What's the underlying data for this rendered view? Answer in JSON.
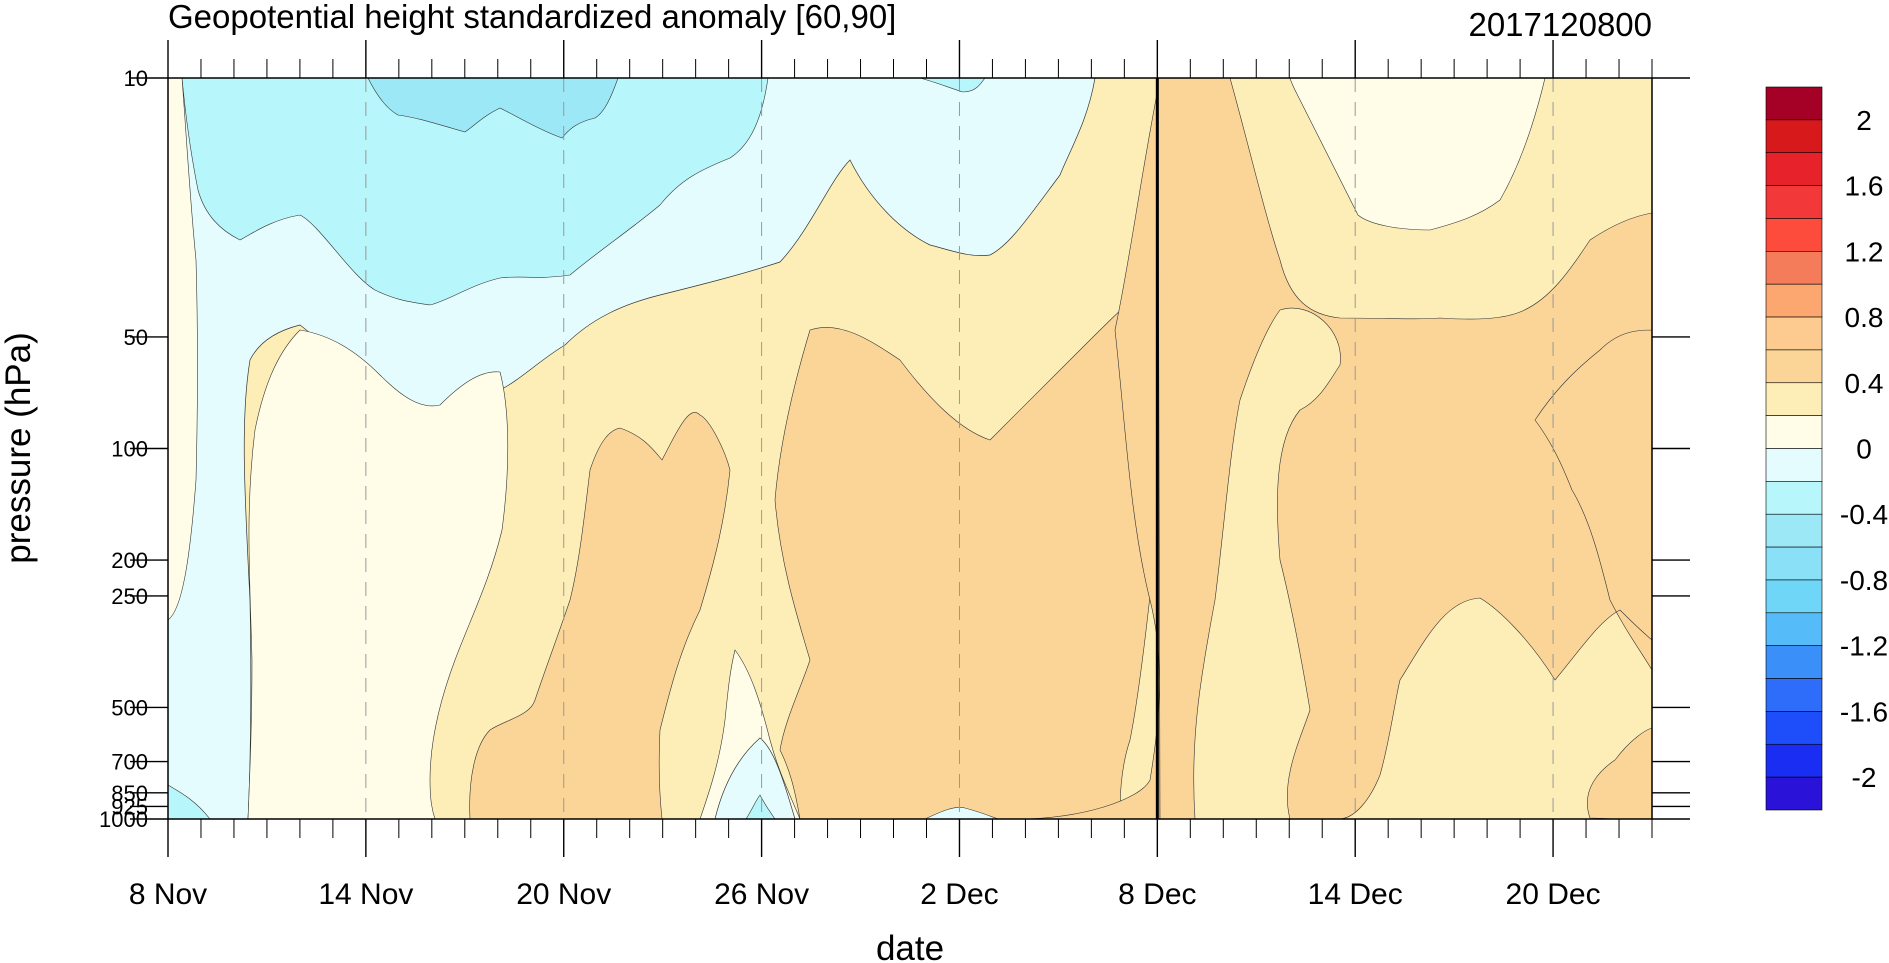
{
  "chart_data": {
    "type": "heatmap",
    "title": "Geopotential height standardized anomaly [60,90]",
    "subtitle": "2017120800",
    "xlabel": "date",
    "ylabel": "pressure (hPa)",
    "x_ticks": [
      "8 Nov",
      "14 Nov",
      "20 Nov",
      "26 Nov",
      "2 Dec",
      "8 Dec",
      "14 Dec",
      "20 Dec"
    ],
    "x_range": [
      "2017-11-08",
      "2017-12-23"
    ],
    "y_ticks": [
      10,
      50,
      100,
      200,
      250,
      500,
      700,
      850,
      925,
      1000
    ],
    "y_scale": "log",
    "y_reversed": true,
    "highlight_date": "2017-12-08",
    "colorbar": {
      "labels": [
        "2",
        "1.6",
        "1.2",
        "0.8",
        "0.4",
        "0",
        "-0.4",
        "-0.8",
        "-1.2",
        "-1.6",
        "-2"
      ],
      "colors": [
        "#a50026",
        "#d7191c",
        "#e8222b",
        "#f3383a",
        "#fd4c3b",
        "#f57c5a",
        "#fca76f",
        "#fdcb8f",
        "#fbd597",
        "#fdeeb7",
        "#fffde8",
        "#e4fcfd",
        "#b7f6fb",
        "#9ce8f7",
        "#8ae0f7",
        "#6fd6f7",
        "#56bcf9",
        "#3a8ff9",
        "#2d6df9",
        "#1e4ef9",
        "#1a2ef3",
        "#2a12d8"
      ]
    },
    "fields": [
      {
        "name": "anomaly",
        "value_range": [
          -0.7,
          0.9
        ]
      }
    ]
  }
}
